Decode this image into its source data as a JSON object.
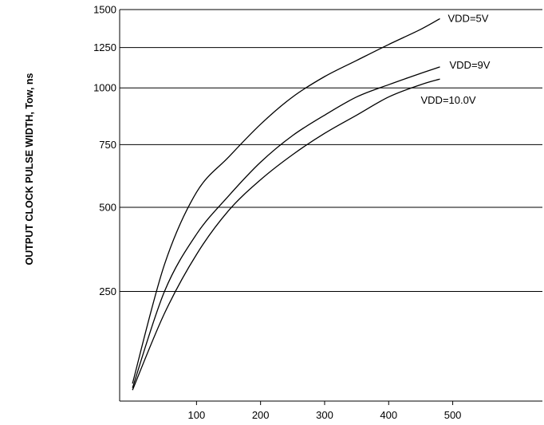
{
  "chart_data": {
    "type": "line",
    "title": "",
    "xlabel": "",
    "ylabel": "OUTPUT CLOCK PULSE WIDTH, Tow, ns",
    "xlim": [
      -20,
      640
    ],
    "x_ticks": [
      "100",
      "200",
      "300",
      "400",
      "500"
    ],
    "x_tick_values": [
      100,
      200,
      300,
      400,
      500
    ],
    "y_ticks": [
      "1500",
      "1250",
      "1000",
      "750",
      "500",
      "250"
    ],
    "y_tick_values": [
      1500,
      1250,
      1000,
      750,
      500,
      250
    ],
    "y_scale": "nonlinear",
    "y_reference": {
      "values": [
        1500,
        1250,
        1000,
        750,
        500,
        250,
        0
      ],
      "relative": [
        0,
        0.097,
        0.2,
        0.345,
        0.505,
        0.72,
        1.0
      ]
    },
    "grid": "horizontal",
    "series": [
      {
        "name": "VDD=5V",
        "x": [
          0,
          50,
          100,
          150,
          200,
          250,
          300,
          350,
          400,
          450,
          480
        ],
        "y": [
          40,
          330,
          560,
          700,
          840,
          960,
          1070,
          1170,
          1270,
          1370,
          1440
        ]
      },
      {
        "name": "VDD=9V",
        "x": [
          0,
          50,
          100,
          150,
          200,
          250,
          300,
          350,
          400,
          450,
          480
        ],
        "y": [
          30,
          250,
          420,
          545,
          680,
          790,
          880,
          960,
          1020,
          1090,
          1130
        ]
      },
      {
        "name": "VDD=10.0V",
        "x": [
          0,
          50,
          100,
          150,
          200,
          250,
          300,
          350,
          400,
          450,
          480
        ],
        "y": [
          25,
          200,
          360,
          490,
          610,
          710,
          800,
          880,
          960,
          1020,
          1055
        ]
      }
    ]
  }
}
